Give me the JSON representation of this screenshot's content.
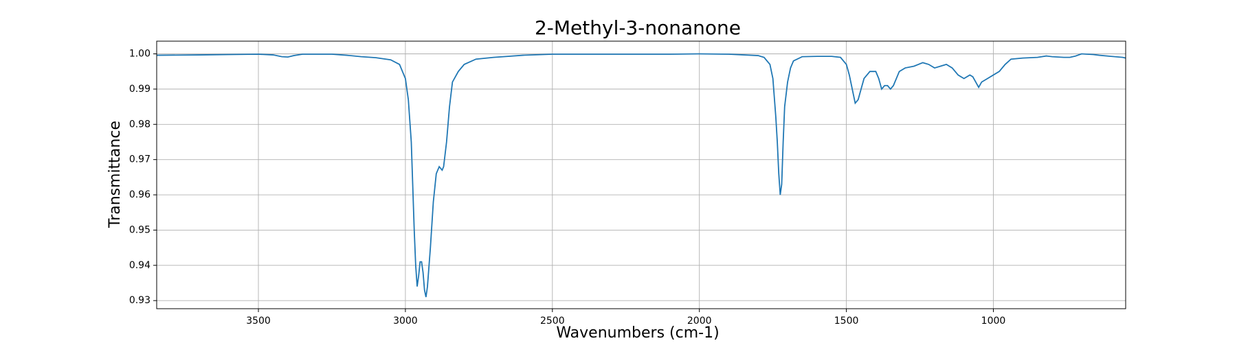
{
  "chart_data": {
    "type": "line",
    "title": "2-Methyl-3-nonanone",
    "x_label": "Wavenumbers (cm-1)",
    "y_label": "Transmittance",
    "xlim": [
      3846,
      550
    ],
    "ylim": [
      0.9277,
      1.0036
    ],
    "xticks": [
      3500,
      3000,
      2500,
      2000,
      1500,
      1000
    ],
    "yticks": [
      0.93,
      0.94,
      0.95,
      0.96,
      0.97,
      0.98,
      0.99,
      {
        "value": 1,
        "label": "1.00"
      }
    ],
    "grid": true,
    "x": [
      3846,
      3700,
      3600,
      3500,
      3450,
      3420,
      3400,
      3380,
      3350,
      3250,
      3200,
      3150,
      3100,
      3050,
      3020,
      3000,
      2990,
      2980,
      2970,
      2965,
      2960,
      2955,
      2950,
      2945,
      2940,
      2935,
      2930,
      2925,
      2915,
      2905,
      2895,
      2885,
      2875,
      2870,
      2860,
      2850,
      2840,
      2820,
      2800,
      2760,
      2700,
      2600,
      2500,
      2400,
      2300,
      2200,
      2100,
      2000,
      1900,
      1800,
      1780,
      1760,
      1750,
      1740,
      1735,
      1730,
      1725,
      1720,
      1715,
      1710,
      1700,
      1690,
      1680,
      1650,
      1600,
      1550,
      1520,
      1500,
      1490,
      1480,
      1470,
      1460,
      1450,
      1440,
      1420,
      1400,
      1390,
      1380,
      1370,
      1360,
      1350,
      1340,
      1320,
      1300,
      1270,
      1240,
      1220,
      1200,
      1180,
      1160,
      1140,
      1120,
      1100,
      1080,
      1070,
      1060,
      1050,
      1040,
      1020,
      1000,
      980,
      960,
      940,
      900,
      850,
      820,
      800,
      760,
      740,
      720,
      700,
      660,
      640,
      600,
      560,
      550
    ],
    "series": [
      {
        "name": "Transmittance",
        "color": "#1f77b4",
        "values": [
          0.9996,
          0.9997,
          0.9998,
          0.9999,
          0.9997,
          0.9992,
          0.9991,
          0.9995,
          0.9999,
          0.9999,
          0.9996,
          0.9992,
          0.9989,
          0.9983,
          0.997,
          0.993,
          0.987,
          0.975,
          0.95,
          0.94,
          0.934,
          0.937,
          0.941,
          0.941,
          0.938,
          0.933,
          0.931,
          0.934,
          0.945,
          0.958,
          0.966,
          0.968,
          0.967,
          0.968,
          0.975,
          0.985,
          0.992,
          0.995,
          0.997,
          0.9985,
          0.999,
          0.9996,
          0.9999,
          0.9999,
          0.9999,
          0.9999,
          0.9999,
          1.0,
          0.9999,
          0.9995,
          0.999,
          0.997,
          0.993,
          0.982,
          0.975,
          0.966,
          0.96,
          0.963,
          0.975,
          0.985,
          0.992,
          0.996,
          0.998,
          0.9992,
          0.9993,
          0.9993,
          0.999,
          0.997,
          0.994,
          0.99,
          0.986,
          0.987,
          0.99,
          0.993,
          0.995,
          0.995,
          0.993,
          0.99,
          0.991,
          0.991,
          0.99,
          0.991,
          0.995,
          0.996,
          0.9965,
          0.9975,
          0.997,
          0.996,
          0.9965,
          0.997,
          0.996,
          0.994,
          0.993,
          0.994,
          0.9935,
          0.992,
          0.9905,
          0.992,
          0.993,
          0.994,
          0.995,
          0.997,
          0.9985,
          0.9988,
          0.999,
          0.9994,
          0.9992,
          0.999,
          0.999,
          0.9994,
          1.0,
          0.9998,
          0.9996,
          0.9993,
          0.999,
          0.9988
        ]
      }
    ]
  }
}
